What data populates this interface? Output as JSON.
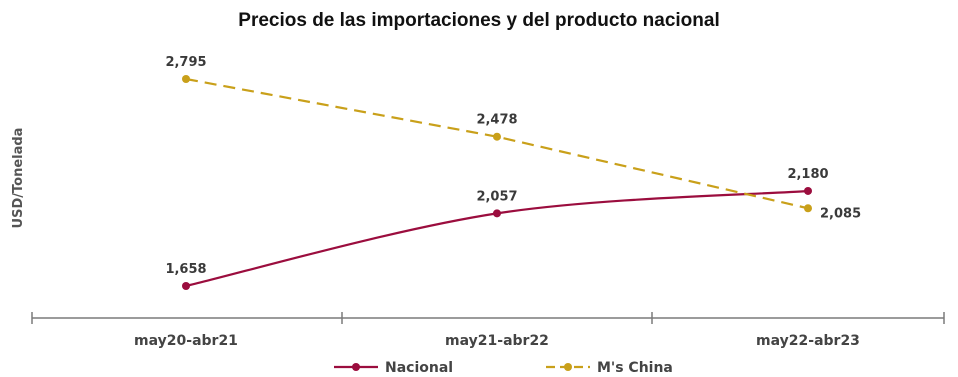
{
  "chart_data": {
    "type": "line",
    "title": "Precios de las importaciones y del producto nacional",
    "ylabel": "USD/Tonelada",
    "xlabel": "",
    "categories": [
      "may20-abr21",
      "may21-abr22",
      "may22-abr23"
    ],
    "series": [
      {
        "name": "Nacional",
        "values": [
          1658,
          2057,
          2180
        ],
        "labels": [
          "1,658",
          "2,057",
          "2,180"
        ],
        "color": "#9b0d3e",
        "style": "solid"
      },
      {
        "name": "M's China",
        "values": [
          2795,
          2478,
          2085
        ],
        "labels": [
          "2,795",
          "2,478",
          "2,085"
        ],
        "color": "#c9a01a",
        "style": "dashed"
      }
    ],
    "ylim": [
      1550,
      3000
    ],
    "grid": false,
    "legend": "bottom-center"
  }
}
